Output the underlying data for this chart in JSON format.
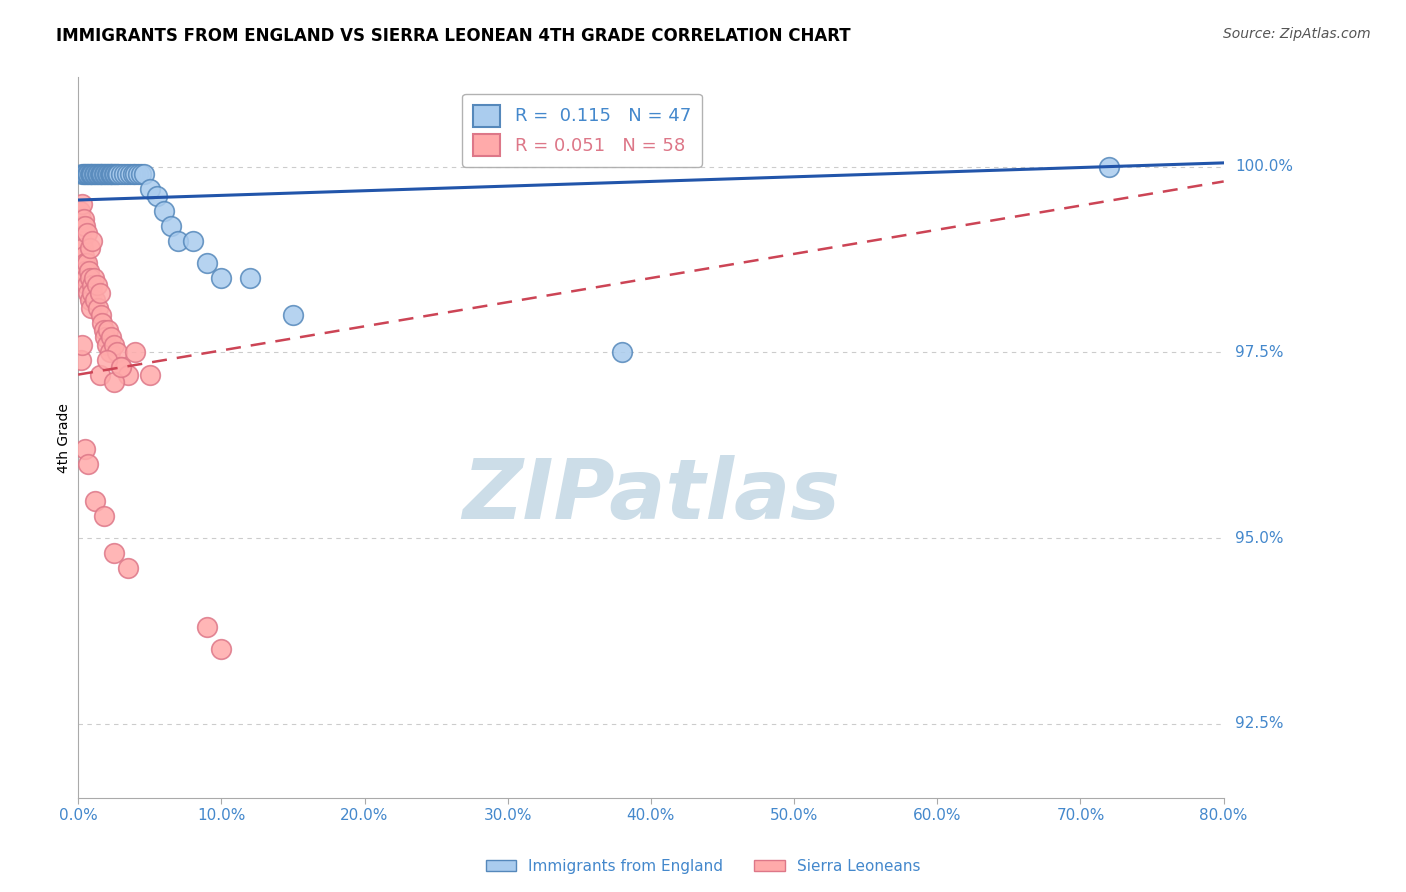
{
  "title": "IMMIGRANTS FROM ENGLAND VS SIERRA LEONEAN 4TH GRADE CORRELATION CHART",
  "source": "Source: ZipAtlas.com",
  "ylabel": "4th Grade",
  "xlim": [
    0.0,
    80.0
  ],
  "ylim": [
    91.5,
    101.2
  ],
  "yticks": [
    92.5,
    95.0,
    97.5,
    100.0
  ],
  "xticks": [
    0.0,
    10.0,
    20.0,
    30.0,
    40.0,
    50.0,
    60.0,
    70.0,
    80.0
  ],
  "blue_label": "Immigrants from England",
  "pink_label": "Sierra Leoneans",
  "R_blue": 0.115,
  "N_blue": 47,
  "R_pink": 0.051,
  "N_pink": 58,
  "blue_color": "#AACCEE",
  "pink_color": "#FFAAAA",
  "blue_edge": "#5588BB",
  "pink_edge": "#DD7788",
  "trend_blue_color": "#2255AA",
  "trend_pink_color": "#CC4455",
  "watermark_text": "ZIPatlas",
  "watermark_color": "#CCDDE8",
  "axis_label_color": "#4488CC",
  "grid_color": "#CCCCCC",
  "blue_trend_x0": 0.0,
  "blue_trend_y0": 99.55,
  "blue_trend_x1": 80.0,
  "blue_trend_y1": 100.05,
  "pink_trend_x0": 0.0,
  "pink_trend_y0": 97.2,
  "pink_trend_x1": 80.0,
  "pink_trend_y1": 99.8,
  "blue_scatter_x": [
    0.3,
    0.4,
    0.5,
    0.6,
    0.7,
    0.8,
    0.9,
    1.0,
    1.1,
    1.2,
    1.3,
    1.4,
    1.5,
    1.6,
    1.7,
    1.8,
    1.9,
    2.0,
    2.1,
    2.2,
    2.3,
    2.4,
    2.5,
    2.6,
    2.7,
    2.8,
    3.0,
    3.2,
    3.4,
    3.6,
    3.8,
    4.0,
    4.2,
    4.4,
    4.6,
    5.0,
    5.5,
    6.0,
    6.5,
    7.0,
    8.0,
    9.0,
    10.0,
    12.0,
    15.0,
    38.0,
    72.0
  ],
  "blue_scatter_y": [
    99.9,
    99.9,
    99.9,
    99.9,
    99.9,
    99.9,
    99.9,
    99.9,
    99.9,
    99.9,
    99.9,
    99.9,
    99.9,
    99.9,
    99.9,
    99.9,
    99.9,
    99.9,
    99.9,
    99.9,
    99.9,
    99.9,
    99.9,
    99.9,
    99.9,
    99.9,
    99.9,
    99.9,
    99.9,
    99.9,
    99.9,
    99.9,
    99.9,
    99.9,
    99.9,
    99.7,
    99.6,
    99.4,
    99.2,
    99.0,
    99.0,
    98.7,
    98.5,
    98.5,
    98.0,
    97.5,
    100.0
  ],
  "pink_scatter_x": [
    0.1,
    0.15,
    0.2,
    0.25,
    0.3,
    0.35,
    0.4,
    0.45,
    0.5,
    0.55,
    0.6,
    0.65,
    0.7,
    0.75,
    0.8,
    0.85,
    0.9,
    0.95,
    1.0,
    1.1,
    1.2,
    1.3,
    1.4,
    1.5,
    1.6,
    1.7,
    1.8,
    1.9,
    2.0,
    2.1,
    2.2,
    2.3,
    2.5,
    2.7,
    3.0,
    3.5,
    4.0,
    5.0,
    0.3,
    0.4,
    0.5,
    0.6,
    0.8,
    1.0,
    0.2,
    0.25,
    1.5,
    2.0,
    2.5,
    3.0,
    0.5,
    0.7,
    1.2,
    1.8,
    2.5,
    3.5,
    9.0,
    10.0
  ],
  "pink_scatter_y": [
    99.3,
    99.4,
    99.3,
    99.2,
    99.0,
    98.9,
    98.8,
    98.7,
    98.6,
    98.5,
    98.7,
    98.4,
    98.3,
    98.6,
    98.2,
    98.5,
    98.1,
    98.4,
    98.3,
    98.5,
    98.2,
    98.4,
    98.1,
    98.3,
    98.0,
    97.9,
    97.8,
    97.7,
    97.6,
    97.8,
    97.5,
    97.7,
    97.6,
    97.5,
    97.3,
    97.2,
    97.5,
    97.2,
    99.5,
    99.3,
    99.2,
    99.1,
    98.9,
    99.0,
    97.4,
    97.6,
    97.2,
    97.4,
    97.1,
    97.3,
    96.2,
    96.0,
    95.5,
    95.3,
    94.8,
    94.6,
    93.8,
    93.5
  ]
}
